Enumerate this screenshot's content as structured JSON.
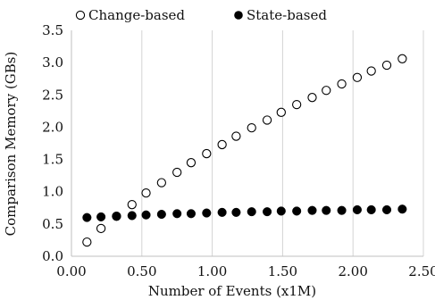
{
  "chart_data": {
    "type": "scatter",
    "xlabel": "Number of Events (x1M)",
    "ylabel": "Comparison Memory (GBs)",
    "xlim": [
      0,
      2.5
    ],
    "ylim": [
      0,
      3.5
    ],
    "x_ticks": [
      "0.00",
      "0.50",
      "1.00",
      "1.50",
      "2.00",
      "2.50"
    ],
    "y_ticks": [
      "0.0",
      "0.5",
      "1.0",
      "1.5",
      "2.0",
      "2.5",
      "3.0",
      "3.5"
    ],
    "grid": "vertical",
    "legend_position": "top",
    "series": [
      {
        "name": "Change-based",
        "marker": "open-circle",
        "color": "#000000",
        "x": [
          0.11,
          0.21,
          0.32,
          0.43,
          0.53,
          0.64,
          0.75,
          0.85,
          0.96,
          1.07,
          1.17,
          1.28,
          1.39,
          1.49,
          1.6,
          1.71,
          1.81,
          1.92,
          2.03,
          2.13,
          2.24,
          2.35
        ],
        "y": [
          0.22,
          0.43,
          0.62,
          0.8,
          0.98,
          1.14,
          1.3,
          1.45,
          1.59,
          1.73,
          1.86,
          1.99,
          2.11,
          2.23,
          2.35,
          2.46,
          2.57,
          2.67,
          2.77,
          2.87,
          2.96,
          3.06
        ]
      },
      {
        "name": "State-based",
        "marker": "filled-circle",
        "color": "#000000",
        "x": [
          0.11,
          0.21,
          0.32,
          0.43,
          0.53,
          0.64,
          0.75,
          0.85,
          0.96,
          1.07,
          1.17,
          1.28,
          1.39,
          1.49,
          1.6,
          1.71,
          1.81,
          1.92,
          2.03,
          2.13,
          2.24,
          2.35
        ],
        "y": [
          0.6,
          0.61,
          0.62,
          0.63,
          0.64,
          0.65,
          0.66,
          0.66,
          0.67,
          0.68,
          0.68,
          0.69,
          0.69,
          0.7,
          0.7,
          0.71,
          0.71,
          0.71,
          0.72,
          0.72,
          0.72,
          0.73
        ]
      }
    ]
  }
}
